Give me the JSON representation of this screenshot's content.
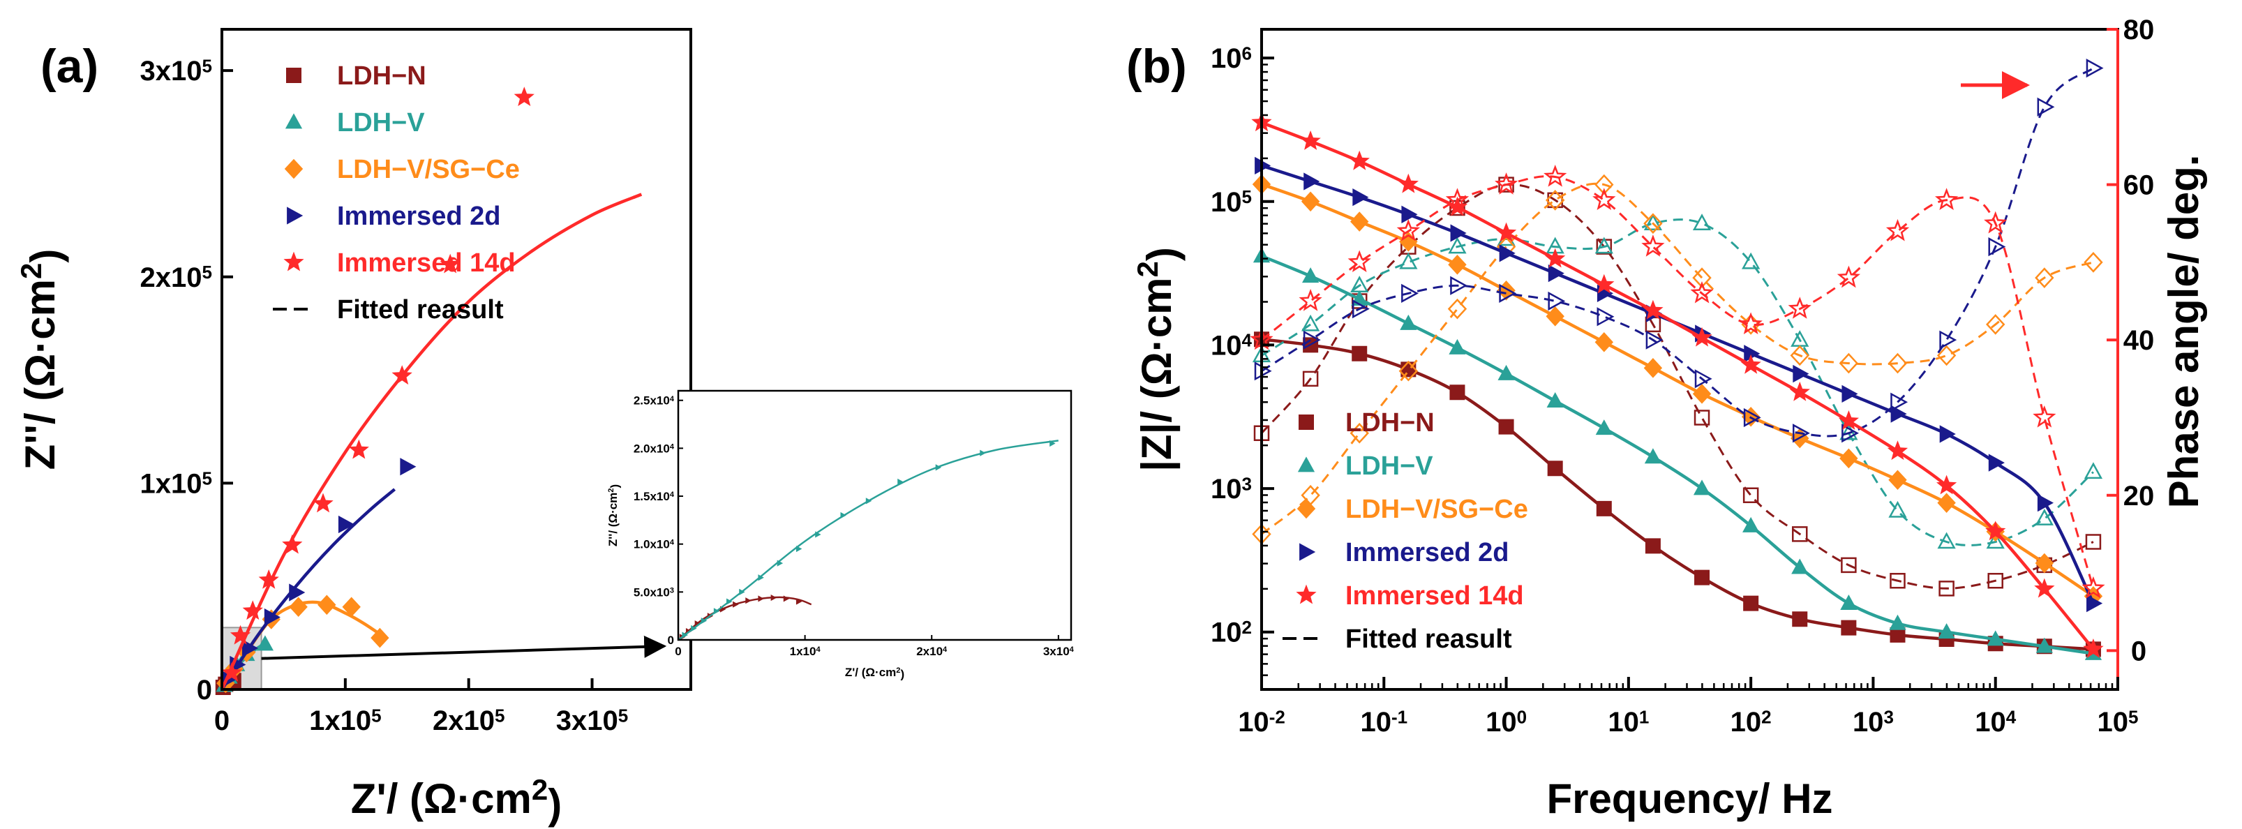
{
  "chart_data": [
    {
      "panel": "(a)",
      "type": "scatter",
      "xlabel": "Z'/ (Ω·cm2)",
      "ylabel": "Z''/ (Ω·cm2)",
      "xlim": [
        0,
        380000
      ],
      "ylim": [
        0,
        320000
      ],
      "xticks": [
        {
          "v": 0,
          "label": "0"
        },
        {
          "v": 100000,
          "label": "1x10",
          "exp": "5"
        },
        {
          "v": 200000,
          "label": "2x10",
          "exp": "5"
        },
        {
          "v": 300000,
          "label": "3x10",
          "exp": "5"
        }
      ],
      "yticks": [
        {
          "v": 0,
          "label": "0"
        },
        {
          "v": 100000,
          "label": "1x10",
          "exp": "5"
        },
        {
          "v": 200000,
          "label": "2x10",
          "exp": "5"
        },
        {
          "v": 300000,
          "label": "3x10",
          "exp": "5"
        }
      ],
      "legend": [
        {
          "label": "LDH−N",
          "marker": "square",
          "color": "#8b1a1a"
        },
        {
          "label": "LDH−V",
          "marker": "triangle",
          "color": "#2aa198"
        },
        {
          "label": "LDH−V/SG−Ce",
          "marker": "diamond",
          "color": "#ff8c1a"
        },
        {
          "label": "Immersed 2d",
          "marker": "tri-right",
          "color": "#1a1a8c"
        },
        {
          "label": "Immersed 14d",
          "marker": "star",
          "color": "#ff2a2a"
        },
        {
          "label": "Fitted reasult",
          "marker": "dash-line",
          "color": "#000000"
        }
      ],
      "series": [
        {
          "name": "LDH−N",
          "marker": "square",
          "color": "#8b1a1a",
          "x": [
            1000,
            3000,
            5000,
            8000,
            9500
          ],
          "y": [
            1000,
            2500,
            4000,
            4600,
            4300
          ],
          "fit_x": [
            0,
            4000,
            7000,
            10000
          ],
          "fit_y": [
            0,
            3500,
            4600,
            4000
          ]
        },
        {
          "name": "LDH−V",
          "marker": "triangle",
          "color": "#2aa198",
          "x": [
            2000,
            6000,
            12000,
            20000,
            35000
          ],
          "y": [
            2000,
            6000,
            12000,
            17000,
            22000
          ],
          "fit_x": [
            0,
            10000,
            20000,
            30000,
            37000
          ],
          "fit_y": [
            0,
            9000,
            16000,
            20500,
            22000
          ]
        },
        {
          "name": "LDH−V/SG−Ce",
          "marker": "diamond",
          "color": "#ff8c1a",
          "x": [
            3000,
            10000,
            20000,
            40000,
            62000,
            85000,
            105000,
            128000
          ],
          "y": [
            3000,
            10000,
            18000,
            34000,
            40000,
            41000,
            40000,
            25000
          ],
          "fit_x": [
            0,
            20000,
            40000,
            60000,
            80000,
            100000,
            115000,
            130000
          ],
          "fit_y": [
            0,
            18000,
            34000,
            41000,
            42000,
            37000,
            32000,
            26000
          ]
        },
        {
          "name": "Immersed 2d",
          "marker": "tri-right",
          "color": "#1a1a8c",
          "x": [
            5000,
            12000,
            22000,
            40000,
            60000,
            100000,
            150000
          ],
          "y": [
            5000,
            12000,
            20000,
            35000,
            47000,
            80000,
            108000
          ],
          "fit_x": [
            0,
            30000,
            60000,
            90000,
            120000,
            140000
          ],
          "fit_y": [
            0,
            27000,
            50000,
            70000,
            87000,
            97000
          ]
        },
        {
          "name": "Immersed 14d",
          "marker": "star",
          "color": "#ff2a2a",
          "x": [
            8000,
            15000,
            25000,
            38000,
            57000,
            82000,
            111000,
            146000,
            185000,
            245000
          ],
          "y": [
            8000,
            26000,
            38000,
            53000,
            70000,
            90000,
            116000,
            152000,
            206000,
            287000
          ],
          "fit_x": [
            0,
            50000,
            100000,
            150000,
            200000,
            250000,
            300000,
            340000
          ],
          "fit_y": [
            0,
            65000,
            115000,
            155000,
            188000,
            212000,
            230000,
            240000
          ]
        }
      ],
      "inset": {
        "xlim": [
          0,
          31000
        ],
        "ylim": [
          0,
          26000
        ],
        "xticks": [
          {
            "v": 0,
            "label": "0"
          },
          {
            "v": 10000,
            "label": "1x10",
            "exp": "4"
          },
          {
            "v": 20000,
            "label": "2x10",
            "exp": "4"
          },
          {
            "v": 30000,
            "label": "3x10",
            "exp": "4"
          }
        ],
        "yticks": [
          {
            "v": 0,
            "label": "0"
          },
          {
            "v": 5000,
            "label": "5.0x10",
            "exp": "3"
          },
          {
            "v": 10000,
            "label": "1.0x10",
            "exp": "4"
          },
          {
            "v": 15000,
            "label": "1.5x10",
            "exp": "4"
          },
          {
            "v": 20000,
            "label": "2.0x10",
            "exp": "4"
          },
          {
            "v": 25000,
            "label": "2.5x10",
            "exp": "4"
          }
        ],
        "xlabel": "Z'/ (Ω·cm2)",
        "ylabel": "Z''/ (Ω·cm2)",
        "series": [
          {
            "name": "LDH−N",
            "color": "#8b1a1a",
            "x": [
              300,
              800,
              1500,
              2500,
              3500,
              4500,
              5500,
              6500,
              7500,
              8500,
              9500
            ],
            "y": [
              300,
              900,
              1700,
              2500,
              3200,
              3700,
              4100,
              4300,
              4400,
              4300,
              4000
            ],
            "fit_x": [
              0,
              2000,
              4000,
              6000,
              8000,
              9500,
              10500
            ],
            "fit_y": [
              0,
              2200,
              3500,
              4200,
              4450,
              4200,
              3700
            ]
          },
          {
            "name": "LDH−V",
            "color": "#2aa198",
            "x": [
              500,
              1200,
              2000,
              3000,
              4000,
              5000,
              6500,
              8000,
              9500,
              11000,
              13000,
              15000,
              17500,
              20500,
              24000,
              29500
            ],
            "y": [
              500,
              1200,
              2000,
              3000,
              4000,
              5000,
              6500,
              8000,
              9500,
              11000,
              13000,
              14500,
              16500,
              18000,
              19500,
              20500
            ],
            "fit_x": [
              0,
              5000,
              10000,
              15000,
              20000,
              25000,
              30000
            ],
            "fit_y": [
              0,
              5000,
              10300,
              14500,
              17800,
              19800,
              20800
            ]
          }
        ]
      }
    },
    {
      "panel": "(b)",
      "type": "line",
      "xlabel": "Frequency/ Hz",
      "ylabel": "|Z|/ (Ω·cm2)",
      "y2label": "Phase angle/ deg.",
      "xscale": "log",
      "yscale": "log",
      "xlim_log10": [
        -2,
        5
      ],
      "ylim_log10": [
        1.6,
        6.2
      ],
      "y2lim": [
        -5,
        80
      ],
      "xticks": [
        {
          "v": -2,
          "label": "10",
          "exp": "-2"
        },
        {
          "v": -1,
          "label": "10",
          "exp": "-1"
        },
        {
          "v": 0,
          "label": "10",
          "exp": "0"
        },
        {
          "v": 1,
          "label": "10",
          "exp": "1"
        },
        {
          "v": 2,
          "label": "10",
          "exp": "2"
        },
        {
          "v": 3,
          "label": "10",
          "exp": "3"
        },
        {
          "v": 4,
          "label": "10",
          "exp": "4"
        },
        {
          "v": 5,
          "label": "10",
          "exp": "5"
        }
      ],
      "yticks": [
        {
          "v": 2,
          "label": "10",
          "exp": "2"
        },
        {
          "v": 3,
          "label": "10",
          "exp": "3"
        },
        {
          "v": 4,
          "label": "10",
          "exp": "4"
        },
        {
          "v": 5,
          "label": "10",
          "exp": "5"
        },
        {
          "v": 6,
          "label": "10",
          "exp": "6"
        }
      ],
      "y2ticks": [
        0,
        20,
        40,
        60,
        80
      ],
      "legend": [
        {
          "label": "LDH−N",
          "marker": "square",
          "color": "#8b1a1a"
        },
        {
          "label": "LDH−V",
          "marker": "triangle",
          "color": "#2aa198"
        },
        {
          "label": "LDH−V/SG−Ce",
          "marker": "diamond",
          "color": "#ff8c1a"
        },
        {
          "label": "Immersed 2d",
          "marker": "tri-right",
          "color": "#1a1a8c"
        },
        {
          "label": "Immersed 14d",
          "marker": "star",
          "color": "#ff2a2a"
        },
        {
          "label": "Fitted reasult",
          "marker": "dash-line",
          "color": "#000000"
        }
      ],
      "annotation": "arrow-right pointing to phase axis",
      "freq_log10": [
        -2,
        -1.6,
        -1.2,
        -0.8,
        -0.4,
        0,
        0.4,
        0.8,
        1.2,
        1.6,
        2,
        2.4,
        2.8,
        3.2,
        3.6,
        4,
        4.4,
        4.8
      ],
      "series": [
        {
          "name": "LDH−N",
          "marker": "square",
          "color": "#8b1a1a",
          "logZ": [
            4.04,
            4.0,
            3.94,
            3.83,
            3.67,
            3.43,
            3.14,
            2.86,
            2.6,
            2.38,
            2.2,
            2.09,
            2.03,
            1.98,
            1.95,
            1.92,
            1.9,
            1.88
          ],
          "phase": [
            28,
            35,
            45,
            52,
            57,
            60,
            58,
            52,
            42,
            30,
            20,
            15,
            11,
            9,
            8,
            9,
            11,
            14
          ]
        },
        {
          "name": "LDH−V",
          "marker": "triangle",
          "color": "#2aa198",
          "logZ": [
            4.62,
            4.48,
            4.32,
            4.15,
            3.98,
            3.8,
            3.61,
            3.42,
            3.22,
            3.0,
            2.74,
            2.45,
            2.2,
            2.06,
            2.0,
            1.95,
            1.9,
            1.85
          ],
          "phase": [
            38,
            42,
            47,
            50,
            52,
            53,
            52,
            52,
            55,
            55,
            50,
            40,
            28,
            18,
            14,
            14,
            17,
            23
          ]
        },
        {
          "name": "LDH−V/SG−Ce",
          "marker": "diamond",
          "color": "#ff8c1a",
          "logZ": [
            5.12,
            5.0,
            4.86,
            4.72,
            4.56,
            4.38,
            4.2,
            4.02,
            3.84,
            3.66,
            3.5,
            3.35,
            3.21,
            3.06,
            2.9,
            2.7,
            2.48,
            2.25
          ],
          "phase": [
            15,
            20,
            28,
            36,
            44,
            52,
            58,
            60,
            55,
            48,
            42,
            38,
            37,
            37,
            38,
            42,
            48,
            50
          ]
        },
        {
          "name": "Immersed 2d",
          "marker": "tri-right",
          "color": "#1a1a8c",
          "logZ": [
            5.25,
            5.14,
            5.03,
            4.91,
            4.78,
            4.64,
            4.5,
            4.36,
            4.22,
            4.08,
            3.94,
            3.8,
            3.66,
            3.52,
            3.38,
            3.18,
            2.9,
            2.2
          ],
          "phase": [
            36,
            40,
            44,
            46,
            47,
            46,
            45,
            43,
            40,
            35,
            30,
            28,
            28,
            32,
            40,
            52,
            70,
            75
          ]
        },
        {
          "name": "Immersed 14d",
          "marker": "star",
          "color": "#ff2a2a",
          "logZ": [
            5.55,
            5.42,
            5.28,
            5.12,
            4.96,
            4.78,
            4.6,
            4.42,
            4.24,
            4.05,
            3.86,
            3.67,
            3.47,
            3.26,
            3.02,
            2.7,
            2.3,
            1.88
          ],
          "phase": [
            40,
            45,
            50,
            54,
            58,
            60,
            61,
            58,
            52,
            46,
            42,
            44,
            48,
            54,
            58,
            55,
            30,
            8
          ]
        }
      ]
    }
  ]
}
